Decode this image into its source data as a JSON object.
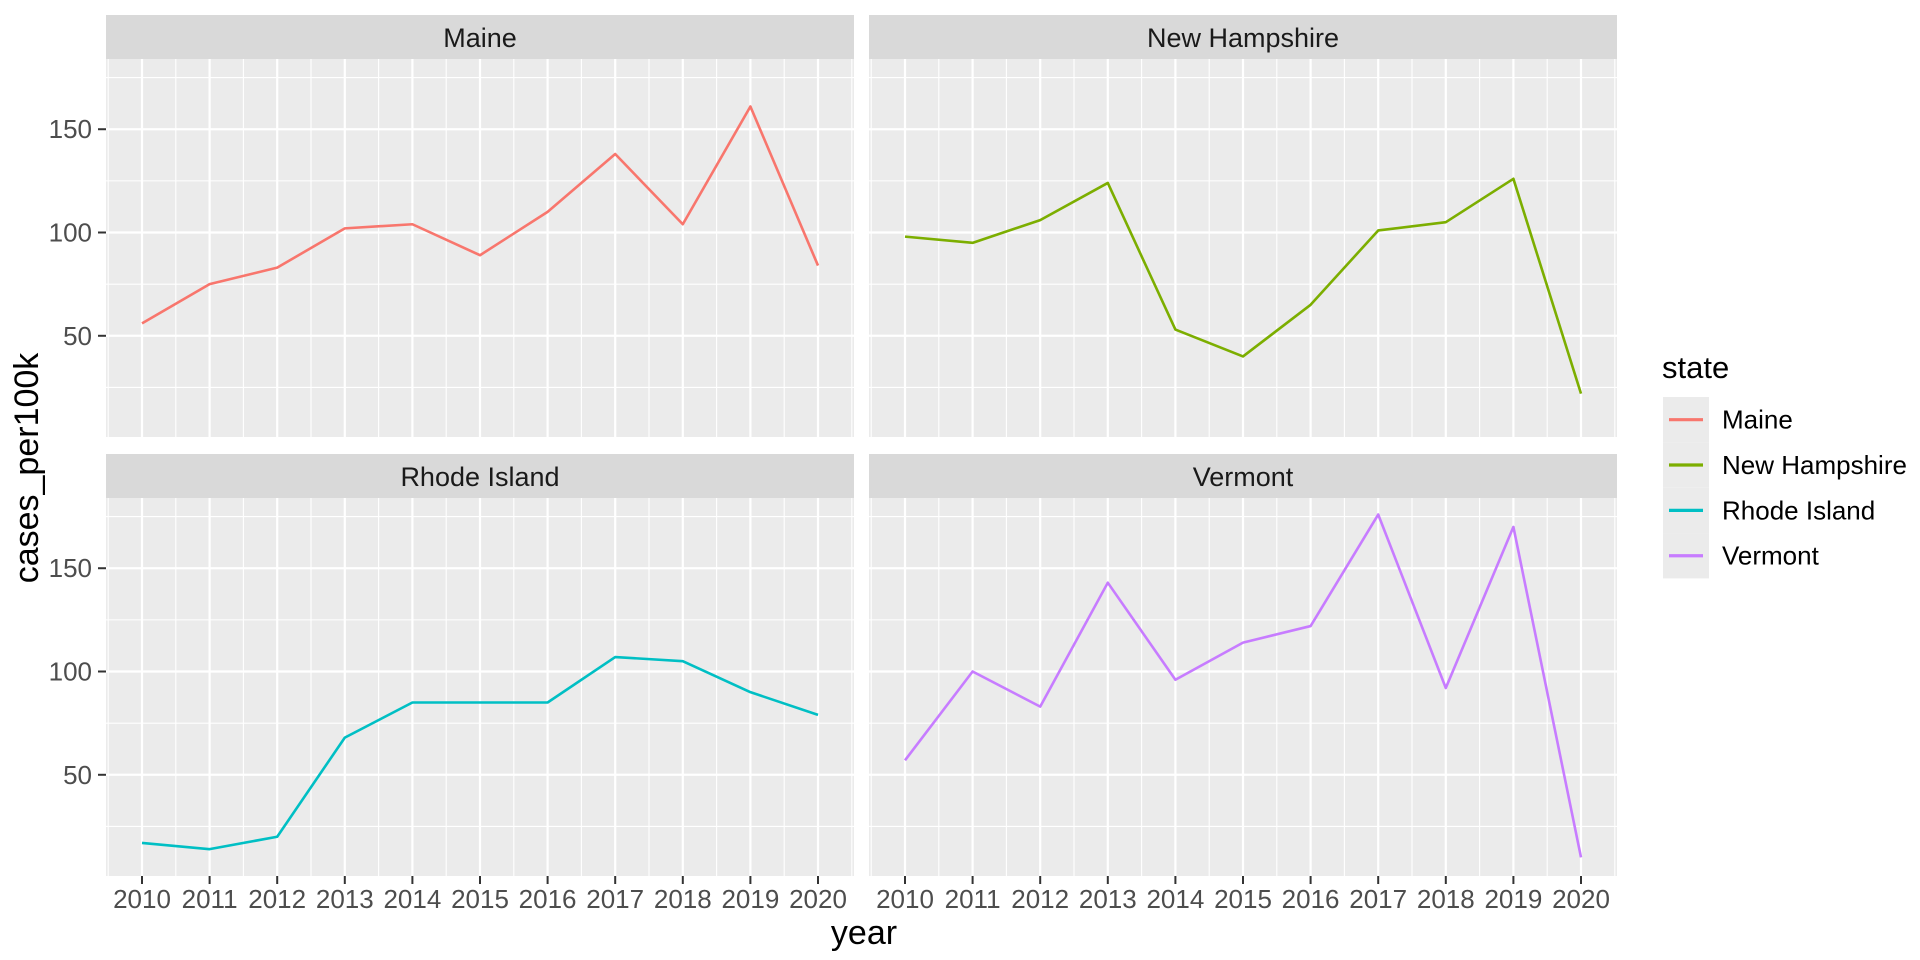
{
  "figure": {
    "kind": "ggplot-faceted-line-chart"
  },
  "chart_data": {
    "type": "line",
    "faceted": true,
    "facet_variable": "state",
    "x": [
      2010,
      2011,
      2012,
      2013,
      2014,
      2015,
      2016,
      2017,
      2018,
      2019,
      2020
    ],
    "x_tick_labels": [
      "2010",
      "2011",
      "2012",
      "2013",
      "2014",
      "2015",
      "2016",
      "2017",
      "2018",
      "2019",
      "2020"
    ],
    "xlabel": "year",
    "ylabel": "cases_per100k",
    "legend_title": "state",
    "legend_position": "right",
    "grid": true,
    "y_ticks": [
      50,
      100,
      150
    ],
    "y_minor_ticks": [
      25,
      75,
      125,
      175
    ],
    "ylim": [
      1,
      184
    ],
    "facets": [
      {
        "name": "Maine",
        "color": "#F8766D",
        "values": [
          56,
          75,
          83,
          102,
          104,
          89,
          110,
          138,
          104,
          161,
          84
        ]
      },
      {
        "name": "New Hampshire",
        "color": "#7CAE00",
        "values": [
          98,
          95,
          106,
          124,
          53,
          40,
          65,
          101,
          105,
          126,
          22
        ]
      },
      {
        "name": "Rhode Island",
        "color": "#00BFC4",
        "values": [
          17,
          14,
          20,
          68,
          85,
          85,
          85,
          107,
          105,
          90,
          79
        ]
      },
      {
        "name": "Vermont",
        "color": "#C77CFF",
        "values": [
          57,
          100,
          83,
          143,
          96,
          114,
          122,
          176,
          92,
          170,
          10
        ]
      }
    ],
    "colors": {
      "background": "#FFFFFF",
      "panel_bg": "#EBEBEB",
      "strip_bg": "#D9D9D9",
      "gridline": "#FFFFFF",
      "tick_text": "#4D4D4D",
      "tick_mark": "#333333",
      "strip_text": "#1A1A1A",
      "legend_key_bg": "#EBEBEB"
    }
  }
}
